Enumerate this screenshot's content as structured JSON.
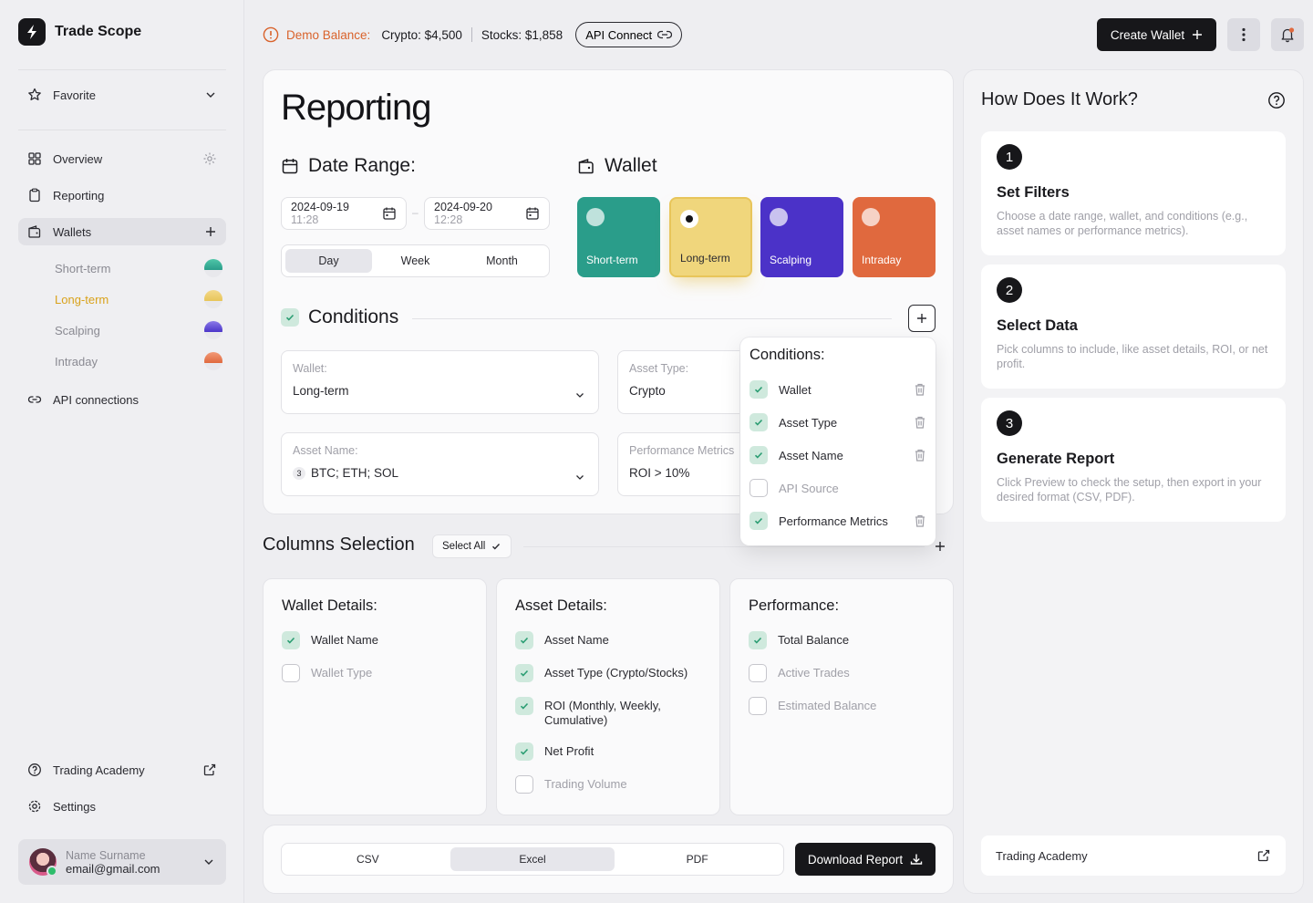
{
  "app": {
    "name": "Trade Scope"
  },
  "sidebar": {
    "favorite": "Favorite",
    "overview": "Overview",
    "reporting": "Reporting",
    "wallets": "Wallets",
    "wallet_items": [
      {
        "label": "Short-term",
        "color": "#2a9d8a"
      },
      {
        "label": "Long-term",
        "color": "#e8c55a"
      },
      {
        "label": "Scalping",
        "color": "#4b35c9"
      },
      {
        "label": "Intraday",
        "color": "#e0693e"
      }
    ],
    "api_connections": "API connections",
    "trading_academy": "Trading Academy",
    "settings": "Settings",
    "user": {
      "name": "Name Surname",
      "email": "email@gmail.com"
    }
  },
  "topbar": {
    "demo_label": "Demo Balance:",
    "crypto": "Crypto: $4,500",
    "stocks": "Stocks: $1,858",
    "api_connect": "API Connect",
    "create_wallet": "Create Wallet"
  },
  "reporting": {
    "title": "Reporting",
    "date_range": {
      "label": "Date Range:",
      "start_date": "2024-09-19",
      "start_time": "11:28",
      "end_date": "2024-09-20",
      "end_time": "12:28",
      "separator": "–",
      "periods": [
        "Day",
        "Week",
        "Month"
      ],
      "selected_period": "Day"
    },
    "wallet": {
      "label": "Wallet",
      "tiles": [
        {
          "label": "Short-term",
          "color": "#2a9d8a"
        },
        {
          "label": "Long-term",
          "color": "#f0d67c"
        },
        {
          "label": "Scalping",
          "color": "#4b32c8"
        },
        {
          "label": "Intraday",
          "color": "#e0693e"
        }
      ],
      "selected": "Long-term"
    },
    "conditions": {
      "label": "Conditions",
      "fields": [
        {
          "label": "Wallet:",
          "value": "Long-term"
        },
        {
          "label": "Asset Type:",
          "value": "Crypto"
        },
        {
          "label": "Asset Name:",
          "value": "BTC; ETH; SOL",
          "count": "3"
        },
        {
          "label": "Performance Metrics",
          "value": "ROI > 10%"
        }
      ],
      "popup": {
        "title": "Conditions:",
        "items": [
          {
            "label": "Wallet",
            "checked": true
          },
          {
            "label": "Asset Type",
            "checked": true
          },
          {
            "label": "Asset Name",
            "checked": true
          },
          {
            "label": "API Source",
            "checked": false
          },
          {
            "label": "Performance Metrics",
            "checked": true
          }
        ]
      }
    },
    "columns": {
      "label": "Columns Selection",
      "select_all": "Select All",
      "groups": [
        {
          "title": "Wallet Details:",
          "items": [
            {
              "label": "Wallet Name",
              "checked": true
            },
            {
              "label": "Wallet Type",
              "checked": false
            }
          ]
        },
        {
          "title": "Asset Details:",
          "items": [
            {
              "label": "Asset Name",
              "checked": true
            },
            {
              "label": "Asset Type (Crypto/Stocks)",
              "checked": true
            },
            {
              "label": "ROI (Monthly, Weekly, Cumulative)",
              "checked": true
            },
            {
              "label": "Net Profit",
              "checked": true
            },
            {
              "label": "Trading Volume",
              "checked": false
            }
          ]
        },
        {
          "title": "Performance:",
          "items": [
            {
              "label": "Total Balance",
              "checked": true
            },
            {
              "label": "Active Trades",
              "checked": false
            },
            {
              "label": "Estimated Balance",
              "checked": false
            }
          ]
        }
      ]
    },
    "export": {
      "formats": [
        "CSV",
        "Excel",
        "PDF"
      ],
      "selected": "Excel",
      "download": "Download Report"
    }
  },
  "howto": {
    "title": "How Does It Work?",
    "steps": [
      {
        "num": "1",
        "title": "Set Filters",
        "desc": "Choose a date range, wallet, and conditions (e.g., asset names or performance metrics)."
      },
      {
        "num": "2",
        "title": "Select Data",
        "desc": "Pick columns to include, like asset details, ROI, or net profit."
      },
      {
        "num": "3",
        "title": "Generate Report",
        "desc": "Click Preview to check the setup, then export in your desired format (CSV, PDF)."
      }
    ],
    "academy": "Trading Academy"
  }
}
